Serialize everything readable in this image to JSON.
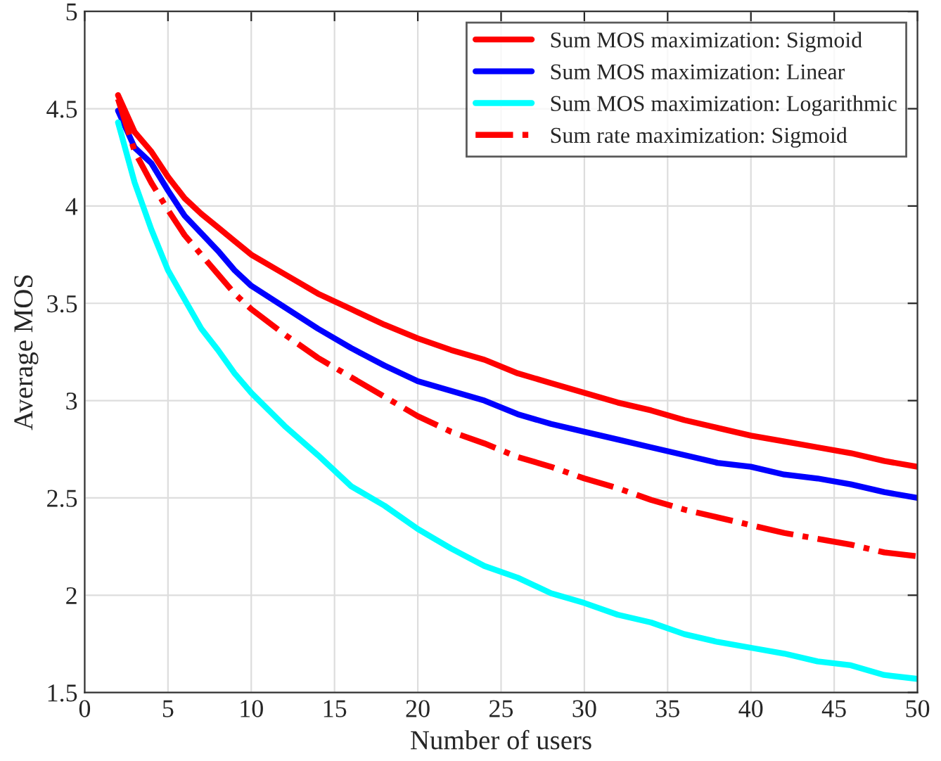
{
  "chart_data": {
    "type": "line",
    "xlabel": "Number of users",
    "ylabel": "Average MOS",
    "x": [
      2,
      3,
      4,
      5,
      6,
      7,
      8,
      9,
      10,
      12,
      14,
      16,
      18,
      20,
      22,
      24,
      26,
      28,
      30,
      32,
      34,
      36,
      38,
      40,
      42,
      44,
      46,
      48,
      50
    ],
    "series": [
      {
        "name": "Sum MOS maximization: Sigmoid",
        "color": "#ff0000",
        "line_style": "solid",
        "values": [
          4.57,
          4.38,
          4.28,
          4.15,
          4.04,
          3.96,
          3.89,
          3.82,
          3.75,
          3.65,
          3.55,
          3.47,
          3.39,
          3.32,
          3.26,
          3.21,
          3.14,
          3.09,
          3.04,
          2.99,
          2.95,
          2.9,
          2.86,
          2.82,
          2.79,
          2.76,
          2.73,
          2.69,
          2.66
        ]
      },
      {
        "name": "Sum MOS maximization: Linear",
        "color": "#0000ff",
        "line_style": "solid",
        "values": [
          4.49,
          4.3,
          4.22,
          4.08,
          3.95,
          3.86,
          3.77,
          3.67,
          3.59,
          3.48,
          3.37,
          3.27,
          3.18,
          3.1,
          3.05,
          3.0,
          2.93,
          2.88,
          2.84,
          2.8,
          2.76,
          2.72,
          2.68,
          2.66,
          2.62,
          2.6,
          2.57,
          2.53,
          2.5
        ]
      },
      {
        "name": "Sum MOS maximization: Logarithmic",
        "color": "#00ffff",
        "line_style": "solid",
        "values": [
          4.43,
          4.12,
          3.88,
          3.67,
          3.52,
          3.37,
          3.26,
          3.14,
          3.04,
          2.87,
          2.72,
          2.56,
          2.46,
          2.34,
          2.24,
          2.15,
          2.09,
          2.01,
          1.96,
          1.9,
          1.86,
          1.8,
          1.76,
          1.73,
          1.7,
          1.66,
          1.64,
          1.59,
          1.57
        ]
      },
      {
        "name": "Sum rate maximization: Sigmoid",
        "color": "#ff0000",
        "line_style": "dashed",
        "values": [
          4.55,
          4.28,
          4.12,
          3.98,
          3.85,
          3.75,
          3.65,
          3.55,
          3.47,
          3.34,
          3.22,
          3.12,
          3.02,
          2.92,
          2.84,
          2.78,
          2.71,
          2.66,
          2.6,
          2.55,
          2.49,
          2.44,
          2.4,
          2.36,
          2.32,
          2.29,
          2.26,
          2.22,
          2.2
        ]
      }
    ],
    "xlim": [
      0,
      50
    ],
    "xticks": [
      0,
      5,
      10,
      15,
      20,
      25,
      30,
      35,
      40,
      45,
      50
    ],
    "ylim": [
      1.5,
      5
    ],
    "yticks": [
      1.5,
      2,
      2.5,
      3,
      3.5,
      4,
      4.5,
      5
    ],
    "grid": true,
    "legend": "top right",
    "marker": "none"
  }
}
